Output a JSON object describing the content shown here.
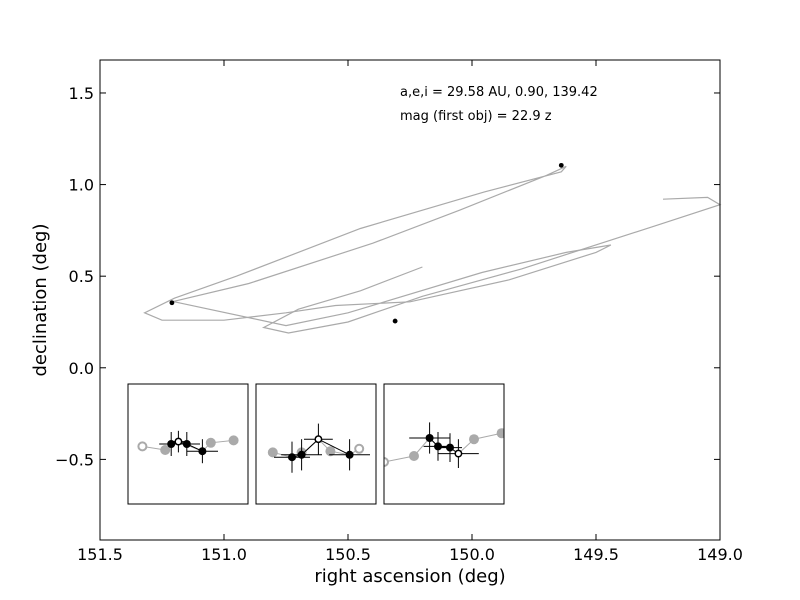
{
  "chart_data": {
    "type": "line",
    "xlabel": "right ascension (deg)",
    "ylabel": "declination (deg)",
    "xlim": [
      151.5,
      149.0
    ],
    "ylim": [
      -0.94,
      1.68
    ],
    "x_ticks": [
      "151.5",
      "151.0",
      "150.5",
      "150.0",
      "149.5",
      "149.0"
    ],
    "y_ticks": [
      "−0.5",
      "0.0",
      "0.5",
      "1.0",
      "1.5"
    ],
    "x_tick_values": [
      151.5,
      151.0,
      150.5,
      150.0,
      149.5,
      149.0
    ],
    "y_tick_values": [
      -0.5,
      0.0,
      0.5,
      1.0,
      1.5
    ],
    "annotations": [
      "a,e,i = 29.58 AU, 0.90, 139.42",
      "mag (first obj) =  22.9 z"
    ],
    "series": [
      {
        "style": "ellipse",
        "color": "#aaaaaa",
        "points": [
          [
            151.21,
            0.36
          ],
          [
            150.9,
            0.46
          ],
          [
            150.4,
            0.68
          ],
          [
            150.05,
            0.86
          ],
          [
            149.7,
            1.05
          ],
          [
            149.62,
            1.1
          ],
          [
            149.64,
            1.07
          ],
          [
            149.95,
            0.96
          ],
          [
            150.45,
            0.76
          ],
          [
            150.95,
            0.5
          ],
          [
            151.2,
            0.38
          ],
          [
            151.32,
            0.3
          ],
          [
            151.25,
            0.26
          ],
          [
            151.0,
            0.26
          ],
          [
            150.75,
            0.3
          ],
          [
            150.55,
            0.34
          ],
          [
            150.25,
            0.36
          ],
          [
            149.85,
            0.48
          ],
          [
            149.5,
            0.63
          ],
          [
            149.44,
            0.67
          ],
          [
            149.62,
            0.63
          ],
          [
            149.96,
            0.52
          ],
          [
            150.5,
            0.3
          ],
          [
            150.75,
            0.23
          ],
          [
            151.2,
            0.36
          ]
        ]
      },
      {
        "style": "ellipse",
        "color": "#aaaaaa",
        "points": [
          [
            149.23,
            0.92
          ],
          [
            149.05,
            0.93
          ],
          [
            149.0,
            0.89
          ],
          [
            149.25,
            0.78
          ],
          [
            149.8,
            0.54
          ],
          [
            150.2,
            0.39
          ],
          [
            150.5,
            0.25
          ],
          [
            150.74,
            0.19
          ],
          [
            150.84,
            0.22
          ],
          [
            150.7,
            0.32
          ],
          [
            150.45,
            0.42
          ],
          [
            150.2,
            0.55
          ]
        ]
      }
    ],
    "points": [
      {
        "x": 151.21,
        "y": 0.355
      },
      {
        "x": 150.31,
        "y": 0.255
      },
      {
        "x": 149.64,
        "y": 1.105
      }
    ],
    "insets": [
      {
        "gray_open": [
          [
            0.12,
            0.48
          ]
        ],
        "gray_filled": [
          [
            0.31,
            0.45
          ],
          [
            0.69,
            0.51
          ],
          [
            0.88,
            0.53
          ]
        ],
        "black_open": [
          [
            0.42,
            0.52
          ]
        ],
        "black_filled": [
          [
            0.36,
            0.5
          ],
          [
            0.49,
            0.5
          ],
          [
            0.62,
            0.44
          ]
        ],
        "errorbars": [
          {
            "x": 0.36,
            "y": 0.5,
            "dx": 0.1,
            "dy": 0.1
          },
          {
            "x": 0.42,
            "y": 0.52,
            "dx": 0.08,
            "dy": 0.09
          },
          {
            "x": 0.49,
            "y": 0.5,
            "dx": 0.11,
            "dy": 0.1
          },
          {
            "x": 0.62,
            "y": 0.44,
            "dx": 0.13,
            "dy": 0.1
          }
        ],
        "gray_line": [
          [
            0.12,
            0.48
          ],
          [
            0.31,
            0.45
          ],
          [
            0.42,
            0.52
          ],
          [
            0.62,
            0.44
          ],
          [
            0.69,
            0.51
          ],
          [
            0.88,
            0.53
          ]
        ]
      },
      {
        "gray_open": [
          [
            0.86,
            0.46
          ]
        ],
        "gray_filled": [
          [
            0.14,
            0.43
          ],
          [
            0.38,
            0.43
          ],
          [
            0.62,
            0.44
          ]
        ],
        "black_open": [
          [
            0.52,
            0.54
          ]
        ],
        "black_filled": [
          [
            0.3,
            0.39
          ],
          [
            0.38,
            0.41
          ],
          [
            0.78,
            0.41
          ]
        ],
        "errorbars": [
          {
            "x": 0.3,
            "y": 0.39,
            "dx": 0.15,
            "dy": 0.13
          },
          {
            "x": 0.38,
            "y": 0.41,
            "dx": 0.17,
            "dy": 0.13
          },
          {
            "x": 0.52,
            "y": 0.54,
            "dx": 0.12,
            "dy": 0.13
          },
          {
            "x": 0.78,
            "y": 0.41,
            "dx": 0.17,
            "dy": 0.13
          }
        ],
        "gray_line": [
          [
            0.14,
            0.43
          ],
          [
            0.3,
            0.39
          ],
          [
            0.38,
            0.41
          ],
          [
            0.52,
            0.54
          ],
          [
            0.62,
            0.44
          ],
          [
            0.78,
            0.41
          ],
          [
            0.86,
            0.46
          ]
        ]
      },
      {
        "gray_open": [
          [
            0.0,
            0.35
          ]
        ],
        "gray_filled": [
          [
            0.25,
            0.4
          ],
          [
            0.75,
            0.54
          ],
          [
            0.98,
            0.59
          ]
        ],
        "black_open": [
          [
            0.62,
            0.42
          ]
        ],
        "black_filled": [
          [
            0.38,
            0.55
          ],
          [
            0.45,
            0.48
          ],
          [
            0.55,
            0.47
          ]
        ],
        "errorbars": [
          {
            "x": 0.38,
            "y": 0.55,
            "dx": 0.17,
            "dy": 0.13
          },
          {
            "x": 0.45,
            "y": 0.48,
            "dx": 0.12,
            "dy": 0.12
          },
          {
            "x": 0.55,
            "y": 0.47,
            "dx": 0.1,
            "dy": 0.12
          },
          {
            "x": 0.62,
            "y": 0.42,
            "dx": 0.17,
            "dy": 0.12
          }
        ],
        "gray_line": [
          [
            0.0,
            0.35
          ],
          [
            0.25,
            0.4
          ],
          [
            0.38,
            0.55
          ],
          [
            0.45,
            0.48
          ],
          [
            0.55,
            0.47
          ],
          [
            0.62,
            0.42
          ],
          [
            0.75,
            0.54
          ],
          [
            0.98,
            0.59
          ]
        ]
      }
    ],
    "colors": {
      "ellipse": "#aaaaaa",
      "gray_marker": "#aaaaaa",
      "black_marker": "#000000",
      "axes": "#000000",
      "background": "#ffffff"
    }
  }
}
